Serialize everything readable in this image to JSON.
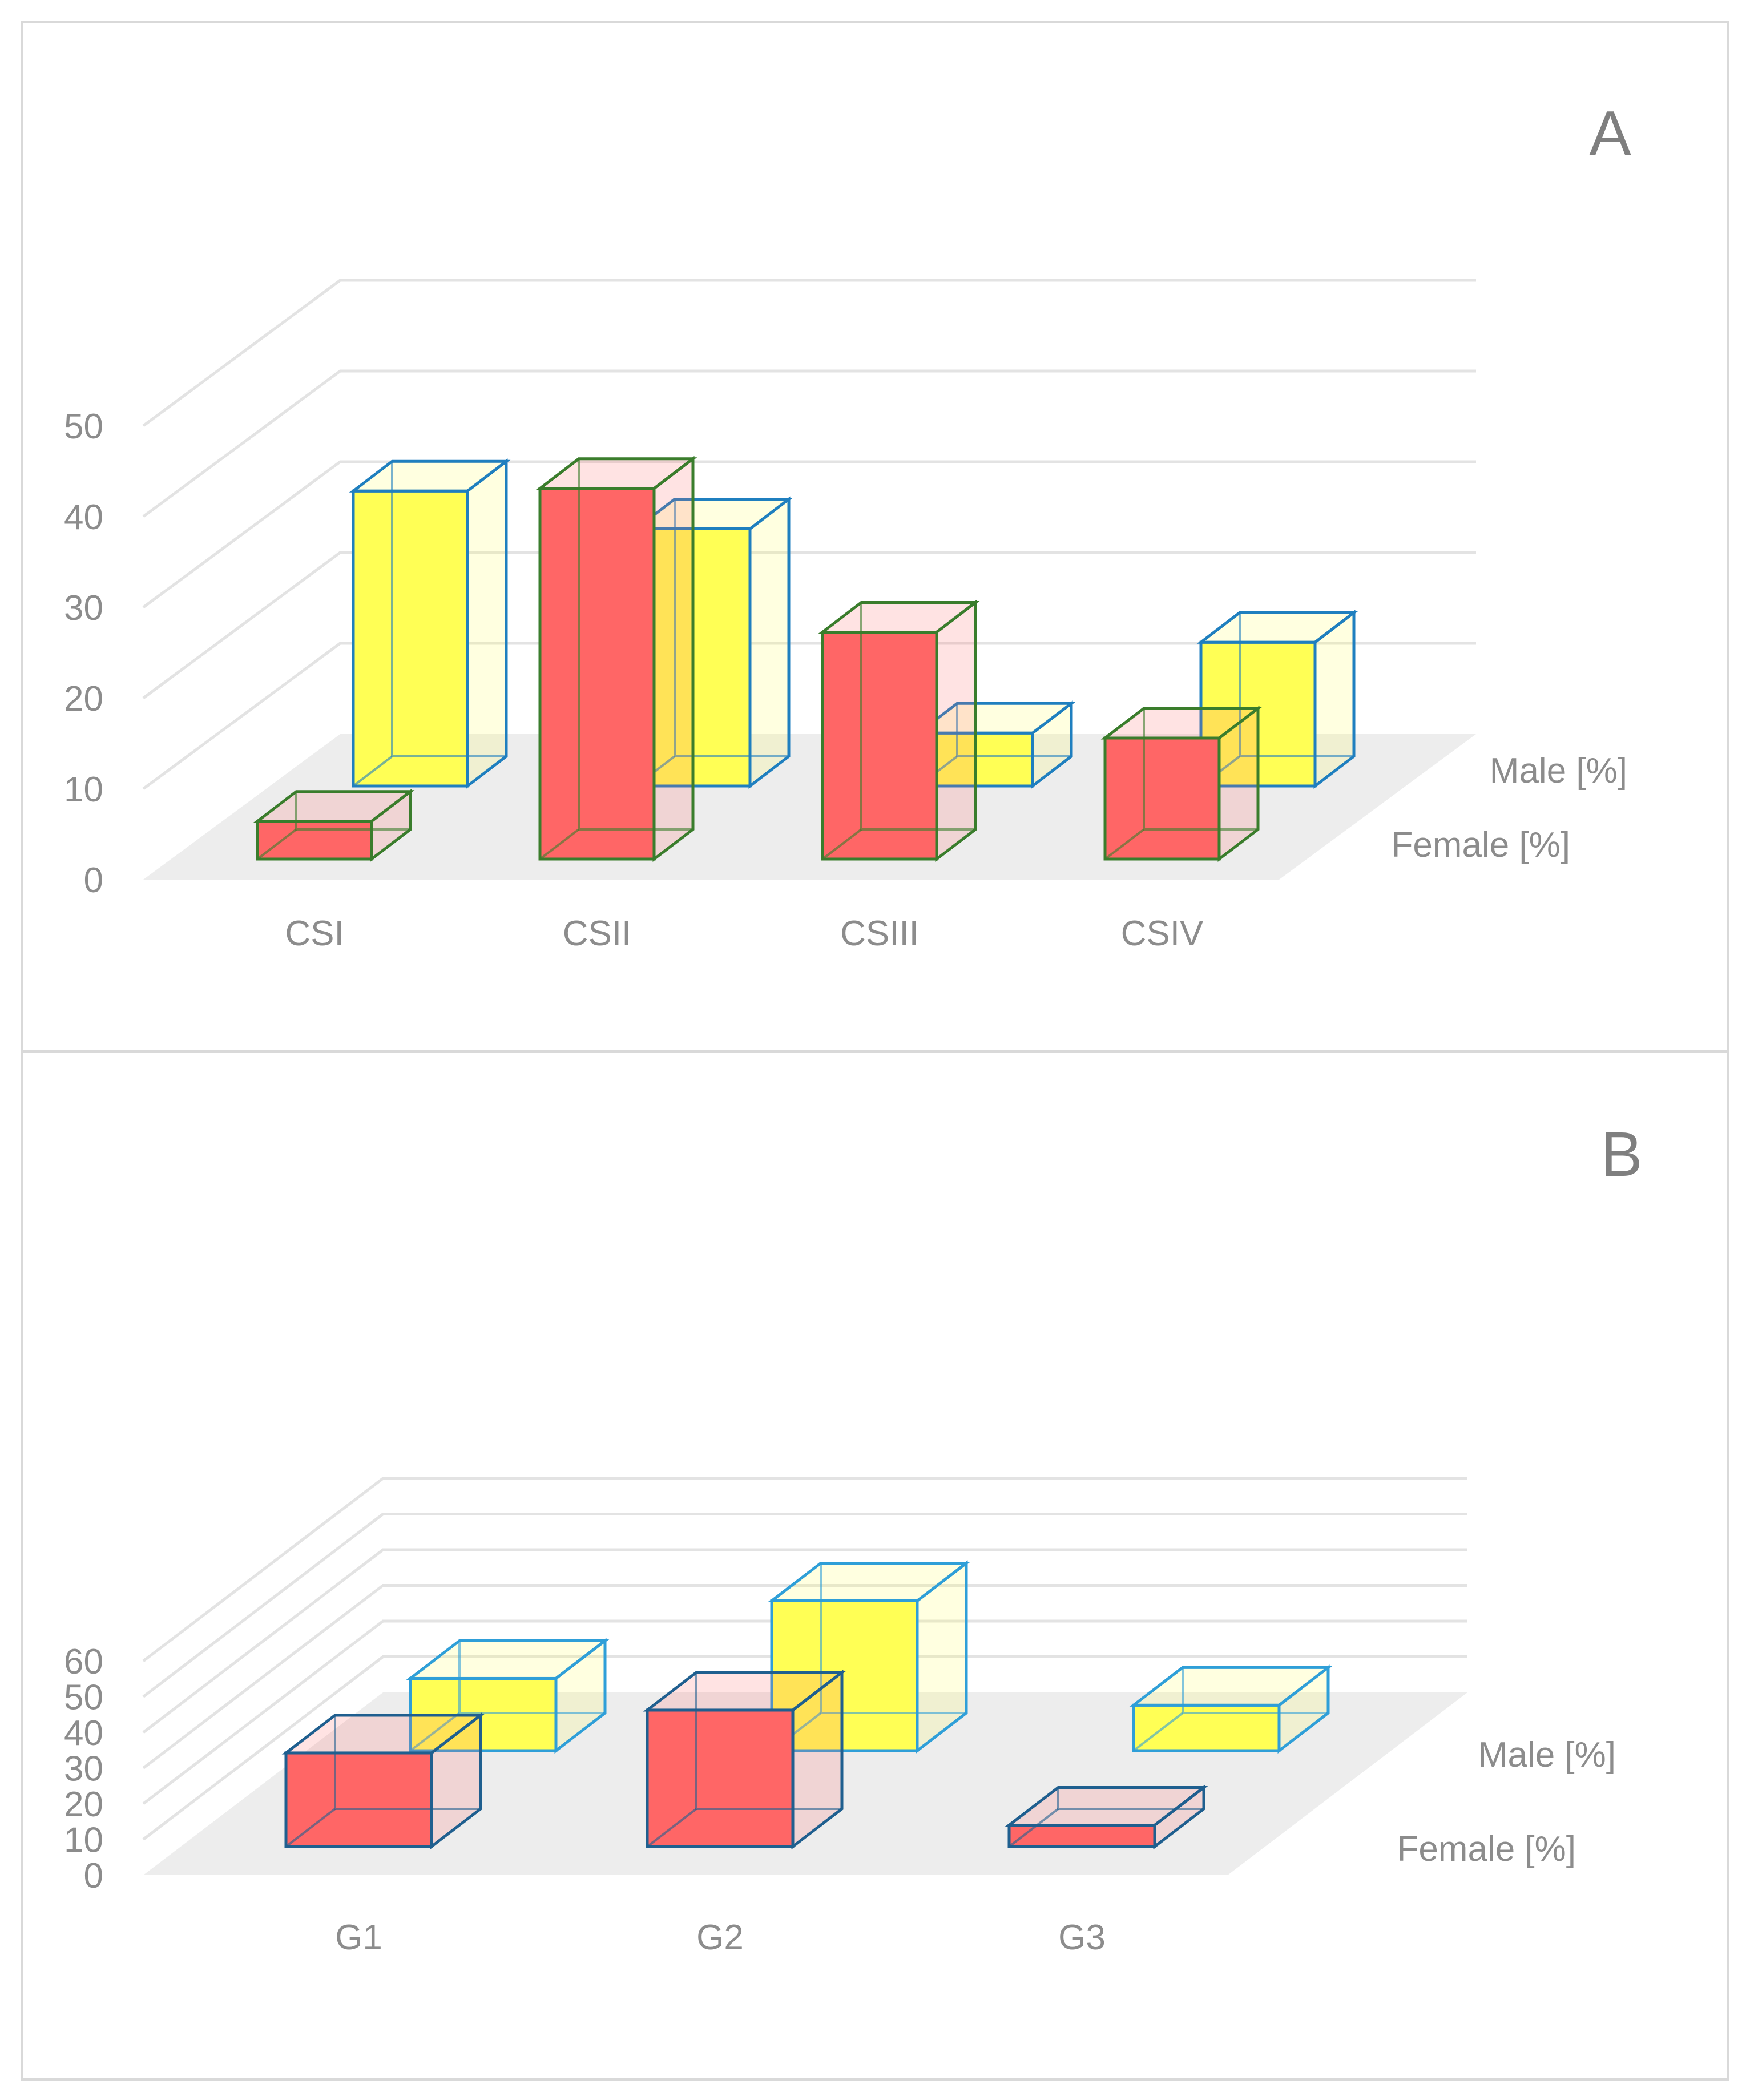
{
  "chart_data": [
    {
      "type": "bar",
      "panel_label": "A",
      "categories": [
        "CSI",
        "CSII",
        "CSIII",
        "CSIV"
      ],
      "series": [
        {
          "name": "Female [%]",
          "values": [
            5,
            49,
            30,
            16
          ]
        },
        {
          "name": "Male [%]",
          "values": [
            39,
            34,
            7,
            19
          ]
        }
      ],
      "yticks": [
        "0",
        "10",
        "20",
        "30",
        "40",
        "50"
      ],
      "ylim": [
        0,
        60
      ]
    },
    {
      "type": "bar",
      "panel_label": "B",
      "categories": [
        "G1",
        "G2",
        "G3"
      ],
      "series": [
        {
          "name": "Female [%]",
          "values": [
            35,
            51,
            8
          ]
        },
        {
          "name": "Male [%]",
          "values": [
            27,
            56,
            17
          ]
        }
      ],
      "yticks": [
        "0",
        "10",
        "20",
        "30",
        "40",
        "50",
        "60"
      ],
      "ylim": [
        0,
        80
      ]
    }
  ],
  "colors": {
    "female_fill": "#ff6666",
    "male_fill": "#ffff55",
    "female_edge_a": "#3a7d2c",
    "male_edge_a": "#1f7fbf",
    "female_edge_b": "#1f5f8f",
    "male_edge_b": "#2f9fd8"
  }
}
